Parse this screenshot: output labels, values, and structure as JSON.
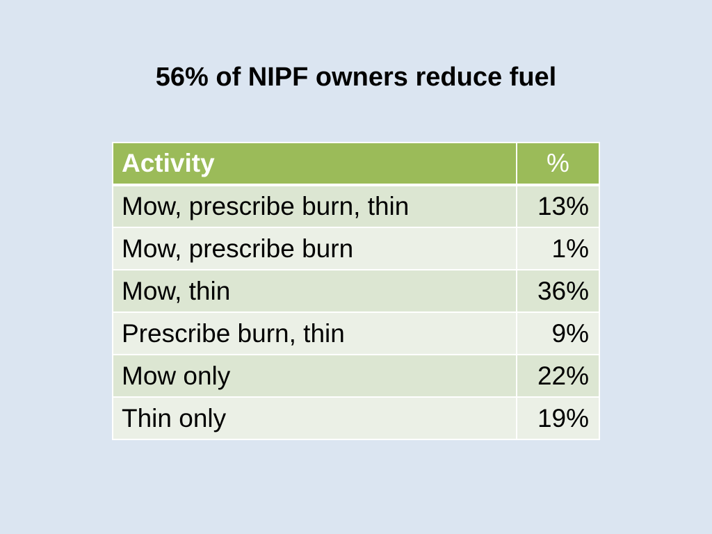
{
  "title": "56% of NIPF owners reduce fuel",
  "table": {
    "header": [
      "Activity",
      "%"
    ],
    "rows": [
      [
        "Mow, prescribe burn, thin",
        "13%"
      ],
      [
        "Mow, prescribe burn",
        "1%"
      ],
      [
        "Mow, thin",
        "36%"
      ],
      [
        "Prescribe burn, thin",
        "9%"
      ],
      [
        "Mow only",
        "22%"
      ],
      [
        "Thin only",
        "19%"
      ]
    ]
  }
}
